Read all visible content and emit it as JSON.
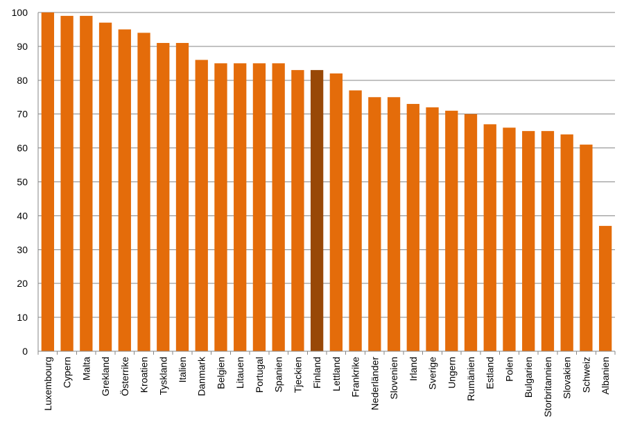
{
  "chart_data": {
    "type": "bar",
    "title": "",
    "xlabel": "",
    "ylabel": "",
    "ylim": [
      0,
      100
    ],
    "yticks": [
      0,
      10,
      20,
      30,
      40,
      50,
      60,
      70,
      80,
      90,
      100
    ],
    "grid": true,
    "legend": "none",
    "bar_color": "#E46C0A",
    "highlight_color": "#984807",
    "highlight_category": "Finland",
    "categories": [
      "Luxembourg",
      "Cypern",
      "Malta",
      "Grekland",
      "Österrike",
      "Kroatien",
      "Tyskland",
      "Italien",
      "Danmark",
      "Belgien",
      "Litauen",
      "Portugal",
      "Spanien",
      "Tjeckien",
      "Finland",
      "Lettland",
      "Frankrike",
      "Nederländer",
      "Slovenien",
      "Irland",
      "Sverige",
      "Ungern",
      "Rumänien",
      "Estland",
      "Polen",
      "Bulgarien",
      "Storbritannien",
      "Slovakien",
      "Schweiz",
      "Albanien"
    ],
    "values": [
      100,
      99,
      99,
      97,
      95,
      94,
      91,
      91,
      86,
      85,
      85,
      85,
      85,
      83,
      83,
      82,
      77,
      75,
      75,
      73,
      72,
      71,
      70,
      67,
      66,
      65,
      65,
      64,
      61,
      37
    ]
  }
}
